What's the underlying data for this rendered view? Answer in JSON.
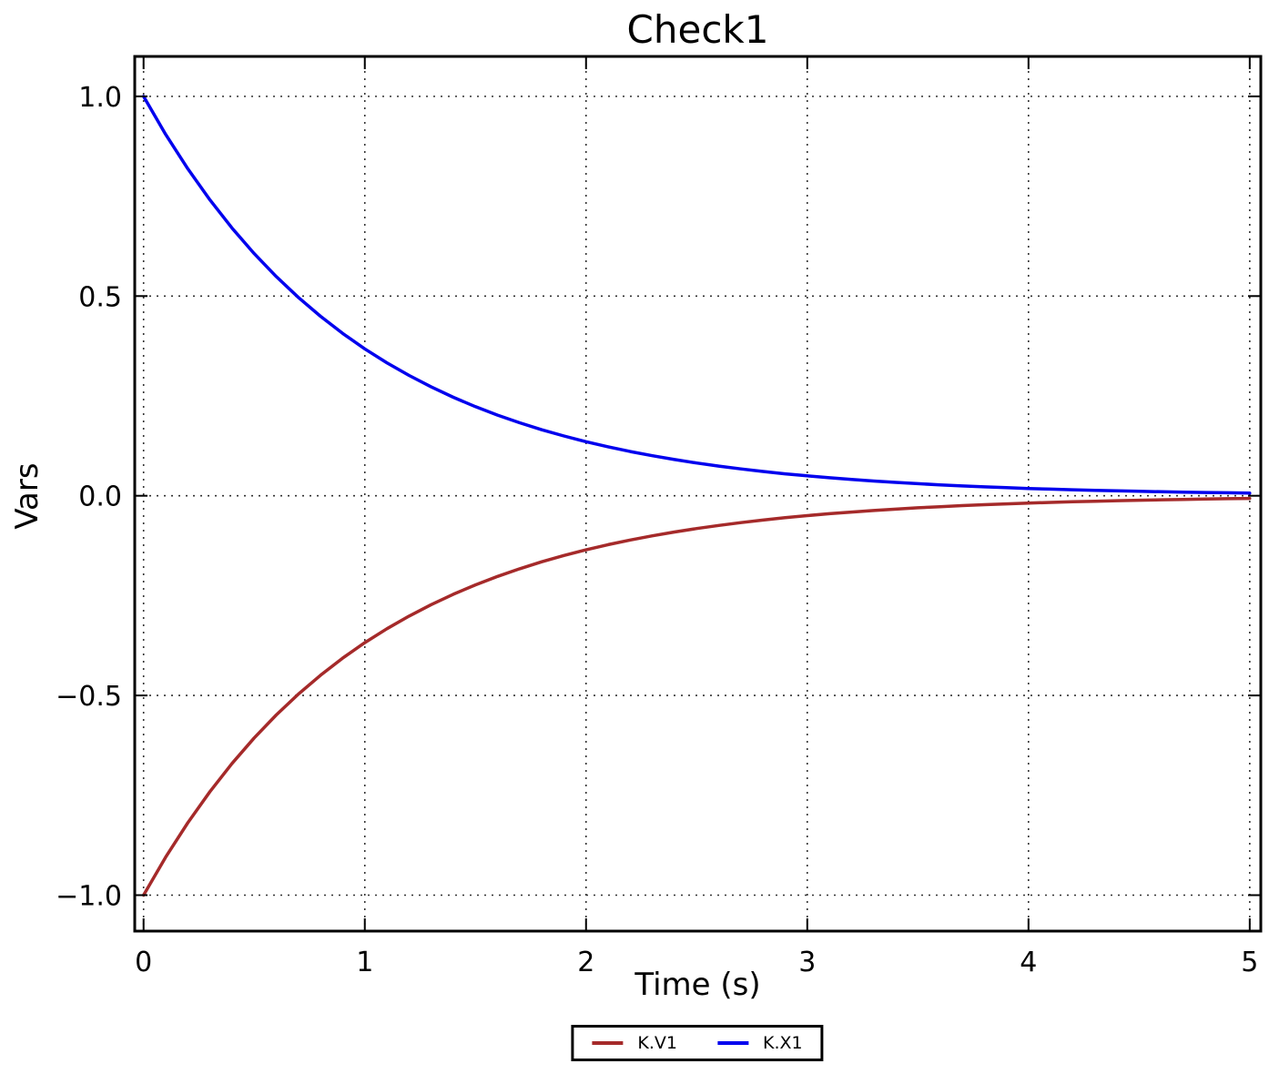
{
  "figure": {
    "background": "#ffffff",
    "spine_color": "#000000",
    "grid_color": "#333333"
  },
  "chart_data": {
    "type": "line",
    "title": "Check1",
    "xlabel": "Time (s)",
    "ylabel": "Vars",
    "xlim": [
      -0.04,
      5.05
    ],
    "ylim": [
      -1.09,
      1.1
    ],
    "grid": "dotted",
    "legend_position": "bottom-center-outside",
    "xticks": {
      "values": [
        0,
        1,
        2,
        3,
        4,
        5
      ],
      "labels": [
        "0",
        "1",
        "2",
        "3",
        "4",
        "5"
      ]
    },
    "yticks": {
      "values": [
        1.0,
        0.5,
        0.0,
        -0.5,
        -1.0
      ],
      "labels": [
        "1.0",
        "0.5",
        "0.0",
        "−0.5",
        "−1.0"
      ]
    },
    "x": [
      0,
      0.1,
      0.2,
      0.3,
      0.4,
      0.5,
      0.6,
      0.7,
      0.8,
      0.9,
      1,
      1.1,
      1.2,
      1.3,
      1.4,
      1.5,
      1.6,
      1.7,
      1.8,
      1.9,
      2,
      2.1,
      2.2,
      2.3,
      2.4,
      2.5,
      2.6,
      2.7,
      2.8,
      2.9,
      3,
      3.1,
      3.2,
      3.3,
      3.4,
      3.5,
      3.6,
      3.7,
      3.8,
      3.9,
      4,
      4.1,
      4.2,
      4.3,
      4.4,
      4.5,
      4.6,
      4.7,
      4.8,
      4.9,
      5
    ],
    "series": [
      {
        "name": "K.V1",
        "color": "#a52a2a",
        "values": [
          -1,
          -0.9048,
          -0.8187,
          -0.7408,
          -0.6703,
          -0.6065,
          -0.5488,
          -0.4966,
          -0.4493,
          -0.4066,
          -0.3679,
          -0.3329,
          -0.3012,
          -0.2725,
          -0.2466,
          -0.2231,
          -0.2019,
          -0.1827,
          -0.1653,
          -0.1496,
          -0.1353,
          -0.1225,
          -0.1108,
          -0.1003,
          -0.0907,
          -0.0821,
          -0.0743,
          -0.0672,
          -0.0608,
          -0.055,
          -0.0498,
          -0.045,
          -0.0408,
          -0.0369,
          -0.0334,
          -0.0302,
          -0.0273,
          -0.0247,
          -0.0224,
          -0.0202,
          -0.0183,
          -0.0166,
          -0.015,
          -0.0136,
          -0.0123,
          -0.0111,
          -0.0101,
          -0.0091,
          -0.0082,
          -0.0074,
          -0.0067
        ]
      },
      {
        "name": "K.X1",
        "color": "#0000ee",
        "values": [
          1,
          0.9048,
          0.8187,
          0.7408,
          0.6703,
          0.6065,
          0.5488,
          0.4966,
          0.4493,
          0.4066,
          0.3679,
          0.3329,
          0.3012,
          0.2725,
          0.2466,
          0.2231,
          0.2019,
          0.1827,
          0.1653,
          0.1496,
          0.1353,
          0.1225,
          0.1108,
          0.1003,
          0.0907,
          0.0821,
          0.0743,
          0.0672,
          0.0608,
          0.055,
          0.0498,
          0.045,
          0.0408,
          0.0369,
          0.0334,
          0.0302,
          0.0273,
          0.0247,
          0.0224,
          0.0202,
          0.0183,
          0.0166,
          0.015,
          0.0136,
          0.0123,
          0.0111,
          0.0101,
          0.0091,
          0.0082,
          0.0074,
          0.0067
        ]
      }
    ]
  }
}
